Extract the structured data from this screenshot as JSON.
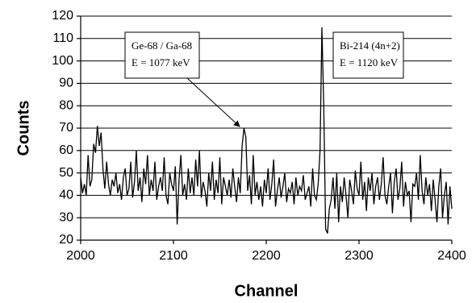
{
  "chart_data": {
    "type": "line",
    "x_label": "Channel",
    "y_label": "Counts",
    "x": [
      2000,
      2002,
      2004,
      2006,
      2008,
      2010,
      2012,
      2014,
      2016,
      2018,
      2020,
      2022,
      2024,
      2026,
      2028,
      2030,
      2032,
      2034,
      2036,
      2038,
      2040,
      2042,
      2044,
      2046,
      2048,
      2050,
      2052,
      2054,
      2056,
      2058,
      2060,
      2062,
      2064,
      2066,
      2068,
      2070,
      2072,
      2074,
      2076,
      2078,
      2080,
      2082,
      2084,
      2086,
      2088,
      2090,
      2092,
      2094,
      2096,
      2098,
      2100,
      2102,
      2104,
      2106,
      2108,
      2110,
      2112,
      2114,
      2116,
      2118,
      2120,
      2122,
      2124,
      2126,
      2128,
      2130,
      2132,
      2134,
      2136,
      2138,
      2140,
      2142,
      2144,
      2146,
      2148,
      2150,
      2152,
      2154,
      2156,
      2158,
      2160,
      2162,
      2164,
      2166,
      2168,
      2170,
      2172,
      2174,
      2176,
      2178,
      2180,
      2182,
      2184,
      2186,
      2188,
      2190,
      2192,
      2194,
      2196,
      2198,
      2200,
      2202,
      2204,
      2206,
      2208,
      2210,
      2212,
      2214,
      2216,
      2218,
      2220,
      2222,
      2224,
      2226,
      2228,
      2230,
      2232,
      2234,
      2236,
      2238,
      2240,
      2242,
      2244,
      2246,
      2248,
      2250,
      2252,
      2254,
      2256,
      2258,
      2260,
      2262,
      2264,
      2266,
      2268,
      2270,
      2272,
      2274,
      2276,
      2278,
      2280,
      2282,
      2284,
      2286,
      2288,
      2290,
      2292,
      2294,
      2296,
      2298,
      2300,
      2302,
      2304,
      2306,
      2308,
      2310,
      2312,
      2314,
      2316,
      2318,
      2320,
      2322,
      2324,
      2326,
      2328,
      2330,
      2332,
      2334,
      2336,
      2338,
      2340,
      2342,
      2344,
      2346,
      2348,
      2350,
      2352,
      2354,
      2356,
      2358,
      2360,
      2362,
      2364,
      2366,
      2368,
      2370,
      2372,
      2374,
      2376,
      2378,
      2380,
      2382,
      2384,
      2386,
      2388,
      2390,
      2392,
      2394,
      2396,
      2398,
      2400
    ],
    "series": [
      {
        "color": "#000000",
        "values": [
          48,
          41,
          45,
          40,
          58,
          44,
          47,
          63,
          59,
          71,
          62,
          68,
          52,
          43,
          55,
          45,
          40,
          47,
          44,
          50,
          41,
          45,
          38,
          48,
          52,
          40,
          43,
          55,
          39,
          46,
          60,
          42,
          48,
          37,
          52,
          45,
          58,
          40,
          47,
          42,
          55,
          38,
          44,
          48,
          42,
          57,
          40,
          36,
          50,
          45,
          42,
          53,
          27,
          47,
          58,
          40,
          45,
          38,
          52,
          41,
          48,
          40,
          56,
          44,
          60,
          39,
          46,
          42,
          35,
          50,
          42,
          55,
          38,
          47,
          41,
          57,
          36,
          48,
          44,
          40,
          47,
          39,
          52,
          44,
          37,
          48,
          41,
          62,
          70,
          66,
          42,
          49,
          36,
          58,
          40,
          46,
          38,
          44,
          35,
          47,
          41,
          52,
          38,
          45,
          56,
          35,
          42,
          48,
          39,
          44,
          50,
          37,
          43,
          41,
          46,
          36,
          48,
          40,
          44,
          42,
          49,
          38,
          41,
          44,
          35,
          52,
          40,
          38,
          45,
          60,
          115,
          80,
          25,
          23,
          34,
          38,
          48,
          34,
          50,
          28,
          44,
          37,
          48,
          40,
          30,
          47,
          42,
          36,
          51,
          43,
          40,
          55,
          38,
          46,
          33,
          48,
          42,
          50,
          36,
          44,
          48,
          38,
          45,
          57,
          40,
          36,
          44,
          50,
          32,
          46,
          52,
          38,
          43,
          55,
          35,
          46,
          40,
          42,
          28,
          45,
          44,
          50,
          38,
          58,
          42,
          36,
          48,
          40,
          45,
          33,
          47,
          38,
          28,
          44,
          52,
          30,
          40,
          46,
          27,
          44,
          34
        ]
      }
    ],
    "xlim": [
      2000,
      2400
    ],
    "xticks": [
      2000,
      2100,
      2200,
      2300,
      2400
    ],
    "ylim": [
      20,
      120
    ],
    "yticks": [
      20,
      30,
      40,
      50,
      60,
      70,
      80,
      90,
      100,
      110,
      120
    ],
    "grid": true,
    "annotations": [
      [
        "Ge-68 / Ga-68",
        "E = 1077 keV"
      ],
      [
        "Bi-214 (4n+2)",
        "E = 1120 keV"
      ]
    ]
  }
}
